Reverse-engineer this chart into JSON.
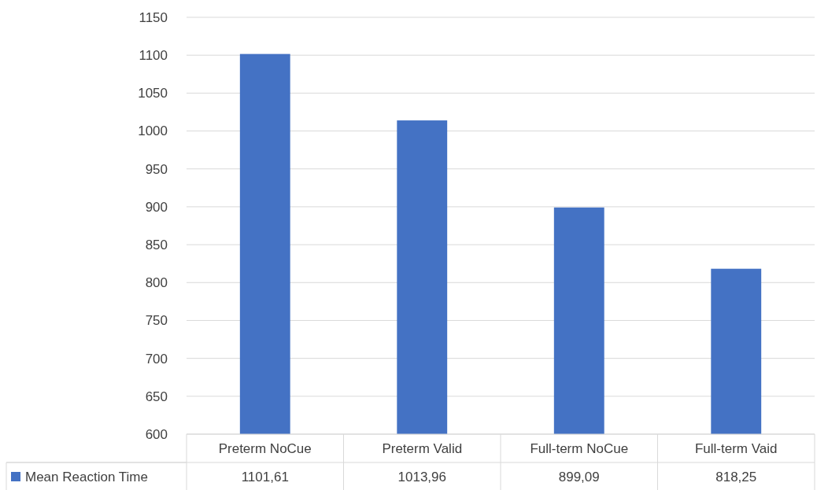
{
  "chart_data": {
    "type": "bar",
    "categories": [
      "Preterm NoCue",
      "Preterm Valid",
      "Full-term NoCue",
      "Full-term Vaid"
    ],
    "series": [
      {
        "name": "Mean Reaction Time",
        "color": "#4472c4",
        "values": [
          1101.61,
          1013.96,
          899.09,
          818.25
        ],
        "value_labels": [
          "1101,61",
          "1013,96",
          "899,09",
          "818,25"
        ]
      }
    ],
    "ylim": [
      600,
      1150
    ],
    "yticks": [
      600,
      650,
      700,
      750,
      800,
      850,
      900,
      950,
      1000,
      1050,
      1100,
      1150
    ],
    "grid": "y",
    "legend": "bottom"
  }
}
